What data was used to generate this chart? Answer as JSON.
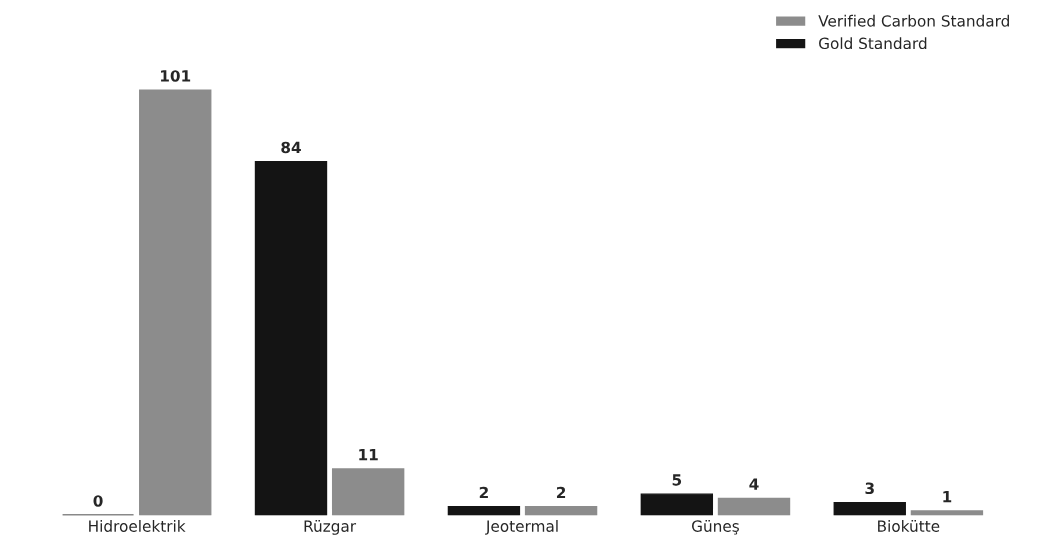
{
  "chart_data": {
    "type": "bar",
    "categories": [
      "Hidroelektrik",
      "Rüzgar",
      "Jeotermal",
      "Güneş",
      "Biokütte"
    ],
    "series": [
      {
        "name": "Gold Standard",
        "color": "#141414",
        "values": [
          0,
          84,
          2,
          5,
          3
        ]
      },
      {
        "name": "Verified Carbon Standard",
        "color": "#8c8c8c",
        "values": [
          101,
          11,
          2,
          4,
          1
        ]
      }
    ],
    "data_labels": true,
    "legend": "top right",
    "grid": false
  }
}
